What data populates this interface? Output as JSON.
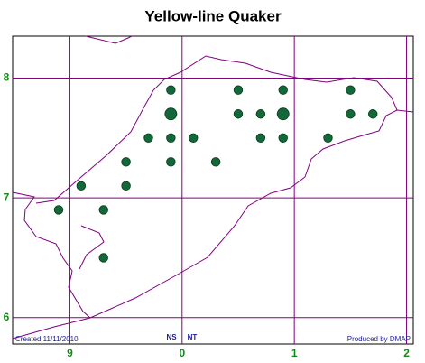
{
  "chart_data": {
    "type": "scatter",
    "title": "Yellow-line Quaker",
    "x": [
      9.9,
      10.5,
      10.9,
      11.5,
      9.9,
      10.5,
      10.7,
      10.9,
      11.5,
      11.7,
      9.7,
      9.9,
      10.1,
      10.7,
      10.9,
      11.3,
      9.5,
      9.9,
      10.3,
      9.1,
      9.5,
      8.9,
      9.3,
      9.3
    ],
    "y": [
      7.9,
      7.9,
      7.9,
      7.9,
      7.7,
      7.7,
      7.7,
      7.7,
      7.7,
      7.7,
      7.5,
      7.5,
      7.5,
      7.5,
      7.5,
      7.5,
      7.3,
      7.3,
      7.3,
      7.1,
      7.1,
      6.9,
      6.9,
      6.5
    ],
    "sizes": [
      1,
      1,
      1,
      1,
      2,
      1,
      1,
      2,
      1,
      1,
      1,
      1,
      1,
      1,
      1,
      1,
      1,
      1,
      1,
      1,
      1,
      1,
      1,
      1
    ],
    "color": "#13683a",
    "xlim": [
      8.49,
      12.06
    ],
    "ylim": [
      5.78,
      8.35
    ],
    "xticks": [
      9,
      {
        "value": 10,
        "label": "0"
      },
      {
        "value": 11,
        "label": "1"
      },
      {
        "value": 12,
        "label": "2"
      }
    ],
    "yticks": [
      8,
      7,
      6
    ],
    "grid": true,
    "grid_squares": [
      "NS",
      "NT"
    ],
    "created": "Created 11/11/2010",
    "producer": "Produced by DMAP"
  }
}
